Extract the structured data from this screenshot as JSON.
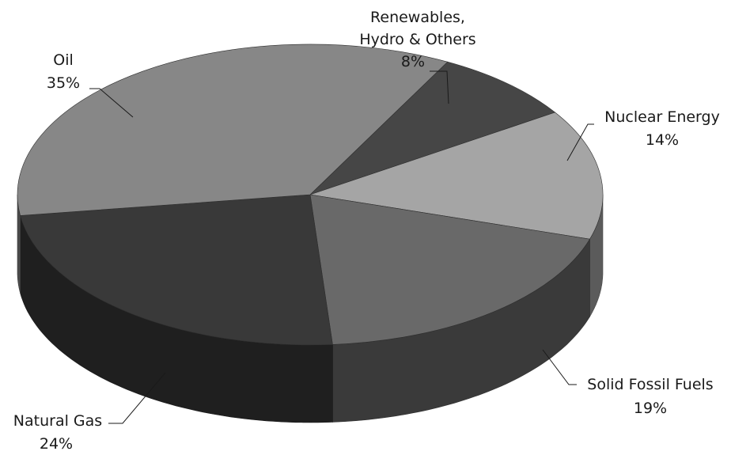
{
  "chart_data": {
    "type": "pie",
    "style": "3d",
    "title": "",
    "legend": "none",
    "slices": [
      {
        "label": "Renewables, Hydro & Others",
        "label_lines": [
          "Renewables,",
          "Hydro & Others"
        ],
        "value": 8,
        "value_label": "8%",
        "color": "#464646"
      },
      {
        "label": "Nuclear Energy",
        "label_lines": [
          "Nuclear Energy"
        ],
        "value": 14,
        "value_label": "14%",
        "color": "#a5a5a5"
      },
      {
        "label": "Solid Fossil Fuels",
        "label_lines": [
          "Solid Fossil Fuels"
        ],
        "value": 19,
        "value_label": "19%",
        "color": "#696969"
      },
      {
        "label": "Natural Gas",
        "label_lines": [
          "Natural Gas"
        ],
        "value": 24,
        "value_label": "24%",
        "color": "#393939"
      },
      {
        "label": "Oil",
        "label_lines": [
          "Oil"
        ],
        "value": 35,
        "value_label": "35%",
        "color": "#878787"
      }
    ]
  }
}
